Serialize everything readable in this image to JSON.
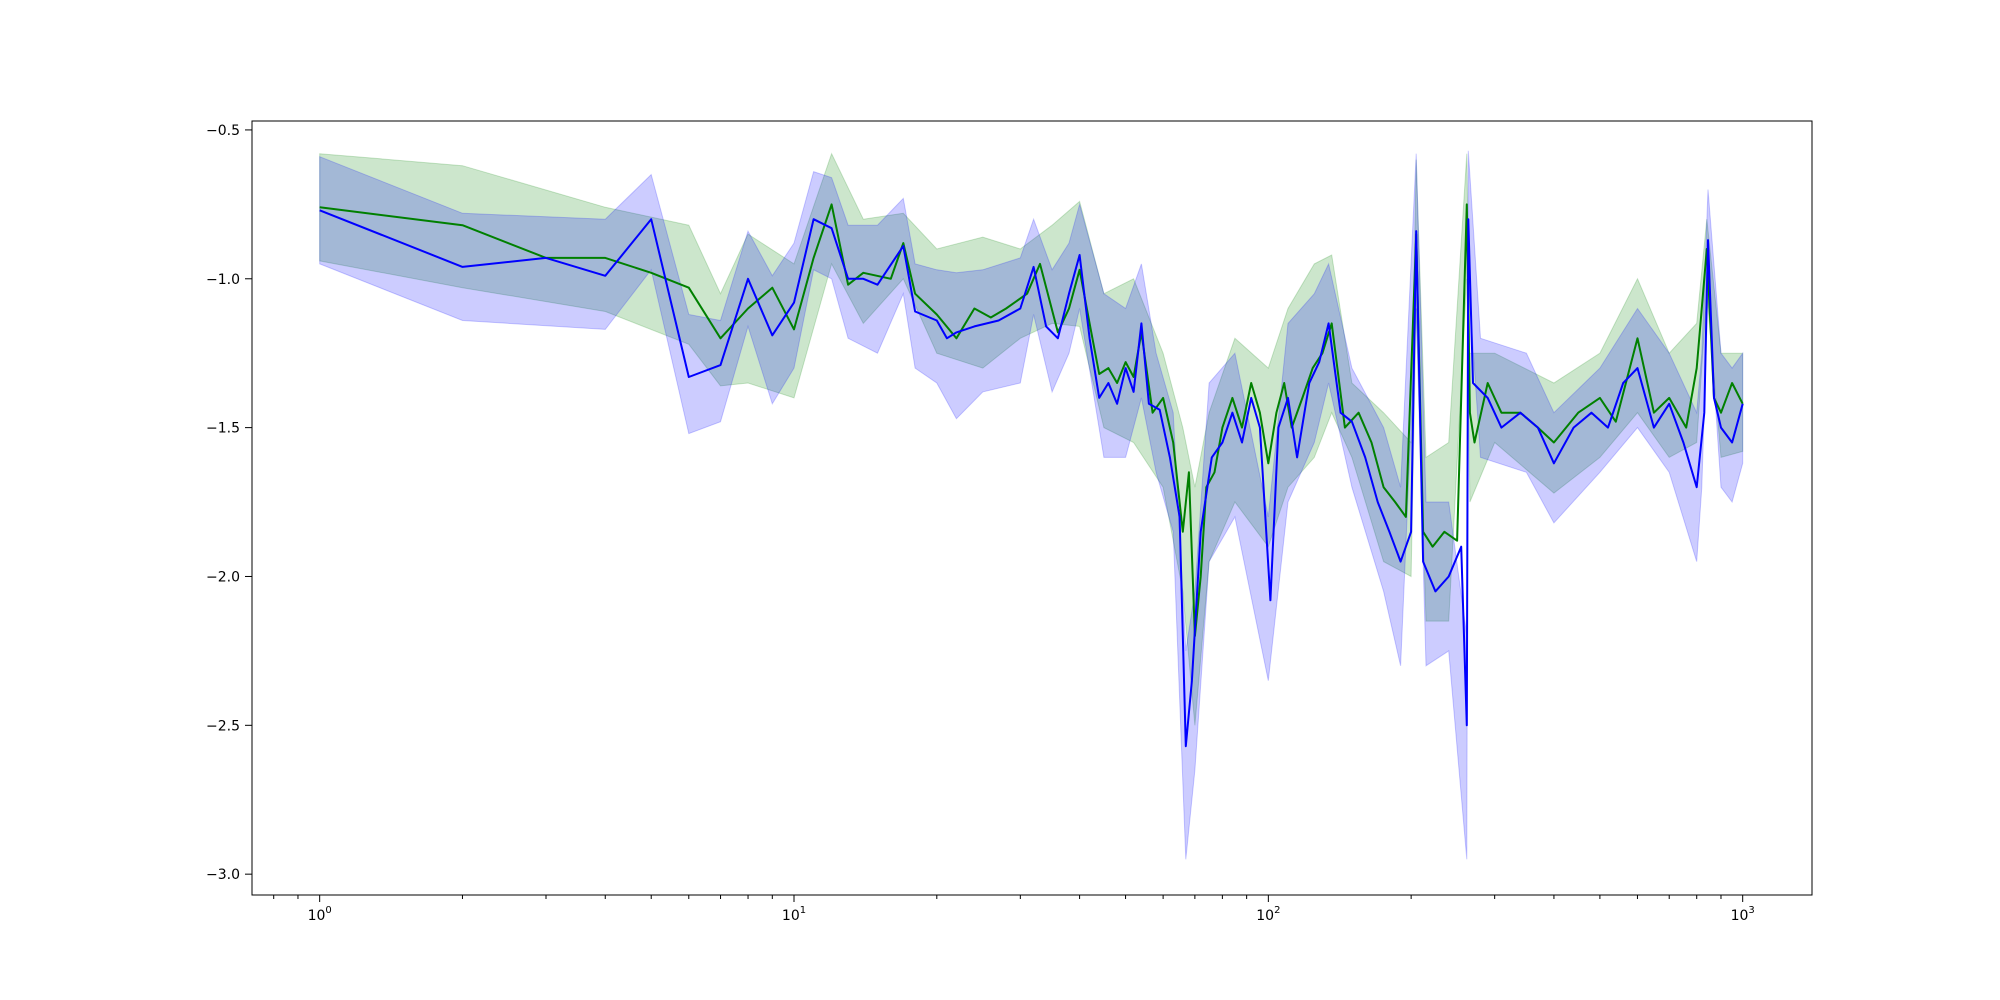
{
  "colors": {
    "green": "#008000",
    "blue": "#0000ff",
    "green_fill": "#008000",
    "blue_fill": "#0000ff"
  },
  "chart_data": {
    "type": "line",
    "title": "",
    "xlabel": "",
    "ylabel": "",
    "x_scale": "log",
    "xlim": [
      0.72,
      1400
    ],
    "ylim": [
      -3.07,
      -0.47
    ],
    "grid": false,
    "legend": "none",
    "x_ticks": [
      {
        "value": 1,
        "base": "10",
        "exp": "0"
      },
      {
        "value": 10,
        "base": "10",
        "exp": "1"
      },
      {
        "value": 100,
        "base": "10",
        "exp": "2"
      },
      {
        "value": 1000,
        "base": "10",
        "exp": "3"
      }
    ],
    "y_ticks": [
      {
        "value": -0.5,
        "label": "−0.5"
      },
      {
        "value": -1.0,
        "label": "−1.0"
      },
      {
        "value": -1.5,
        "label": "−1.5"
      },
      {
        "value": -2.0,
        "label": "−2.0"
      },
      {
        "value": -2.5,
        "label": "−2.5"
      },
      {
        "value": -3.0,
        "label": "−3.0"
      }
    ],
    "series": [
      {
        "color": "green",
        "points": [
          [
            1,
            -0.76
          ],
          [
            2,
            -0.82
          ],
          [
            3,
            -0.93
          ],
          [
            4,
            -0.93
          ],
          [
            5,
            -0.98
          ],
          [
            6,
            -1.03
          ],
          [
            7,
            -1.2
          ],
          [
            8,
            -1.1
          ],
          [
            9,
            -1.03
          ],
          [
            10,
            -1.17
          ],
          [
            11,
            -0.93
          ],
          [
            12,
            -0.75
          ],
          [
            13,
            -1.02
          ],
          [
            14,
            -0.98
          ],
          [
            16,
            -1.0
          ],
          [
            17,
            -0.88
          ],
          [
            18,
            -1.05
          ],
          [
            20,
            -1.12
          ],
          [
            22,
            -1.2
          ],
          [
            24,
            -1.1
          ],
          [
            26,
            -1.13
          ],
          [
            28,
            -1.1
          ],
          [
            31,
            -1.05
          ],
          [
            33,
            -0.95
          ],
          [
            36,
            -1.18
          ],
          [
            38,
            -1.1
          ],
          [
            40,
            -0.97
          ],
          [
            42,
            -1.15
          ],
          [
            44,
            -1.32
          ],
          [
            46,
            -1.3
          ],
          [
            48,
            -1.35
          ],
          [
            50,
            -1.28
          ],
          [
            52,
            -1.33
          ],
          [
            54,
            -1.18
          ],
          [
            57,
            -1.45
          ],
          [
            60,
            -1.4
          ],
          [
            63,
            -1.55
          ],
          [
            66,
            -1.85
          ],
          [
            68,
            -1.65
          ],
          [
            70,
            -2.2
          ],
          [
            72,
            -2.0
          ],
          [
            74,
            -1.7
          ],
          [
            77,
            -1.65
          ],
          [
            80,
            -1.5
          ],
          [
            84,
            -1.4
          ],
          [
            88,
            -1.5
          ],
          [
            92,
            -1.35
          ],
          [
            96,
            -1.45
          ],
          [
            100,
            -1.62
          ],
          [
            104,
            -1.45
          ],
          [
            108,
            -1.35
          ],
          [
            112,
            -1.5
          ],
          [
            118,
            -1.4
          ],
          [
            124,
            -1.3
          ],
          [
            130,
            -1.25
          ],
          [
            136,
            -1.15
          ],
          [
            145,
            -1.5
          ],
          [
            155,
            -1.45
          ],
          [
            165,
            -1.55
          ],
          [
            175,
            -1.7
          ],
          [
            185,
            -1.75
          ],
          [
            195,
            -1.8
          ],
          [
            205,
            -0.85
          ],
          [
            212,
            -1.85
          ],
          [
            222,
            -1.9
          ],
          [
            235,
            -1.85
          ],
          [
            250,
            -1.88
          ],
          [
            262,
            -0.75
          ],
          [
            266,
            -1.45
          ],
          [
            272,
            -1.55
          ],
          [
            290,
            -1.35
          ],
          [
            310,
            -1.45
          ],
          [
            340,
            -1.45
          ],
          [
            370,
            -1.5
          ],
          [
            400,
            -1.55
          ],
          [
            450,
            -1.45
          ],
          [
            500,
            -1.4
          ],
          [
            540,
            -1.48
          ],
          [
            600,
            -1.2
          ],
          [
            650,
            -1.45
          ],
          [
            700,
            -1.4
          ],
          [
            760,
            -1.5
          ],
          [
            800,
            -1.3
          ],
          [
            840,
            -0.9
          ],
          [
            870,
            -1.4
          ],
          [
            900,
            -1.45
          ],
          [
            950,
            -1.35
          ],
          [
            1000,
            -1.42
          ]
        ]
      },
      {
        "color": "blue",
        "points": [
          [
            1,
            -0.77
          ],
          [
            2,
            -0.96
          ],
          [
            3,
            -0.93
          ],
          [
            4,
            -0.99
          ],
          [
            5,
            -0.8
          ],
          [
            6,
            -1.33
          ],
          [
            7,
            -1.29
          ],
          [
            8,
            -1.0
          ],
          [
            9,
            -1.19
          ],
          [
            10,
            -1.08
          ],
          [
            11,
            -0.8
          ],
          [
            12,
            -0.83
          ],
          [
            13,
            -1.0
          ],
          [
            14,
            -1.0
          ],
          [
            15,
            -1.02
          ],
          [
            17,
            -0.89
          ],
          [
            18,
            -1.11
          ],
          [
            20,
            -1.14
          ],
          [
            21,
            -1.2
          ],
          [
            22,
            -1.18
          ],
          [
            24,
            -1.16
          ],
          [
            27,
            -1.14
          ],
          [
            30,
            -1.1
          ],
          [
            32,
            -0.96
          ],
          [
            34,
            -1.16
          ],
          [
            36,
            -1.2
          ],
          [
            38,
            -1.05
          ],
          [
            40,
            -0.92
          ],
          [
            42,
            -1.2
          ],
          [
            44,
            -1.4
          ],
          [
            46,
            -1.35
          ],
          [
            48,
            -1.42
          ],
          [
            50,
            -1.3
          ],
          [
            52,
            -1.38
          ],
          [
            54,
            -1.15
          ],
          [
            56,
            -1.42
          ],
          [
            59,
            -1.44
          ],
          [
            62,
            -1.6
          ],
          [
            65,
            -1.8
          ],
          [
            67,
            -2.57
          ],
          [
            69,
            -2.35
          ],
          [
            72,
            -1.85
          ],
          [
            76,
            -1.6
          ],
          [
            80,
            -1.55
          ],
          [
            84,
            -1.45
          ],
          [
            88,
            -1.55
          ],
          [
            92,
            -1.4
          ],
          [
            96,
            -1.5
          ],
          [
            101,
            -2.08
          ],
          [
            105,
            -1.5
          ],
          [
            110,
            -1.4
          ],
          [
            115,
            -1.6
          ],
          [
            122,
            -1.35
          ],
          [
            128,
            -1.28
          ],
          [
            134,
            -1.15
          ],
          [
            142,
            -1.45
          ],
          [
            150,
            -1.48
          ],
          [
            160,
            -1.6
          ],
          [
            170,
            -1.75
          ],
          [
            180,
            -1.85
          ],
          [
            190,
            -1.95
          ],
          [
            200,
            -1.85
          ],
          [
            205,
            -0.84
          ],
          [
            212,
            -1.95
          ],
          [
            225,
            -2.05
          ],
          [
            240,
            -2.0
          ],
          [
            255,
            -1.9
          ],
          [
            262,
            -2.5
          ],
          [
            264,
            -0.8
          ],
          [
            270,
            -1.35
          ],
          [
            290,
            -1.4
          ],
          [
            310,
            -1.5
          ],
          [
            340,
            -1.45
          ],
          [
            370,
            -1.5
          ],
          [
            400,
            -1.62
          ],
          [
            440,
            -1.5
          ],
          [
            480,
            -1.45
          ],
          [
            520,
            -1.5
          ],
          [
            560,
            -1.35
          ],
          [
            600,
            -1.3
          ],
          [
            650,
            -1.5
          ],
          [
            700,
            -1.42
          ],
          [
            750,
            -1.55
          ],
          [
            800,
            -1.7
          ],
          [
            830,
            -1.45
          ],
          [
            845,
            -0.87
          ],
          [
            870,
            -1.4
          ],
          [
            900,
            -1.5
          ],
          [
            950,
            -1.55
          ],
          [
            1000,
            -1.42
          ]
        ]
      }
    ],
    "bands": [
      {
        "color": "green",
        "points": [
          [
            1,
            -0.58,
            -0.94
          ],
          [
            2,
            -0.62,
            -1.03
          ],
          [
            4,
            -0.76,
            -1.11
          ],
          [
            6,
            -0.82,
            -1.22
          ],
          [
            7,
            -1.05,
            -1.36
          ],
          [
            8,
            -0.85,
            -1.35
          ],
          [
            10,
            -0.95,
            -1.4
          ],
          [
            12,
            -0.58,
            -0.95
          ],
          [
            14,
            -0.8,
            -1.15
          ],
          [
            17,
            -0.78,
            -1.0
          ],
          [
            20,
            -0.9,
            -1.25
          ],
          [
            25,
            -0.86,
            -1.3
          ],
          [
            30,
            -0.9,
            -1.2
          ],
          [
            35,
            -0.82,
            -1.15
          ],
          [
            40,
            -0.74,
            -1.16
          ],
          [
            45,
            -1.05,
            -1.5
          ],
          [
            52,
            -1.0,
            -1.55
          ],
          [
            60,
            -1.25,
            -1.7
          ],
          [
            66,
            -1.5,
            -2.05
          ],
          [
            70,
            -1.7,
            -2.5
          ],
          [
            75,
            -1.45,
            -1.95
          ],
          [
            85,
            -1.2,
            -1.75
          ],
          [
            100,
            -1.3,
            -1.9
          ],
          [
            110,
            -1.1,
            -1.7
          ],
          [
            125,
            -0.95,
            -1.6
          ],
          [
            136,
            -0.92,
            -1.45
          ],
          [
            150,
            -1.35,
            -1.6
          ],
          [
            175,
            -1.45,
            -1.95
          ],
          [
            200,
            -1.55,
            -2.0
          ],
          [
            205,
            -0.6,
            -1.1
          ],
          [
            215,
            -1.6,
            -2.15
          ],
          [
            240,
            -1.55,
            -2.15
          ],
          [
            262,
            -0.58,
            -1.0
          ],
          [
            266,
            -1.25,
            -1.75
          ],
          [
            300,
            -1.25,
            -1.55
          ],
          [
            400,
            -1.35,
            -1.72
          ],
          [
            500,
            -1.25,
            -1.6
          ],
          [
            600,
            -1.0,
            -1.45
          ],
          [
            700,
            -1.25,
            -1.6
          ],
          [
            800,
            -1.15,
            -1.55
          ],
          [
            840,
            -0.8,
            -1.05
          ],
          [
            900,
            -1.25,
            -1.6
          ],
          [
            1000,
            -1.25,
            -1.58
          ]
        ]
      },
      {
        "color": "blue",
        "points": [
          [
            1,
            -0.59,
            -0.95
          ],
          [
            2,
            -0.78,
            -1.14
          ],
          [
            4,
            -0.8,
            -1.17
          ],
          [
            5,
            -0.65,
            -0.97
          ],
          [
            6,
            -1.12,
            -1.52
          ],
          [
            7,
            -1.14,
            -1.48
          ],
          [
            8,
            -0.84,
            -1.16
          ],
          [
            9,
            -0.99,
            -1.42
          ],
          [
            10,
            -0.88,
            -1.3
          ],
          [
            11,
            -0.64,
            -0.97
          ],
          [
            12,
            -0.66,
            -1.0
          ],
          [
            13,
            -0.82,
            -1.2
          ],
          [
            15,
            -0.82,
            -1.25
          ],
          [
            17,
            -0.73,
            -1.05
          ],
          [
            18,
            -0.95,
            -1.3
          ],
          [
            20,
            -0.97,
            -1.35
          ],
          [
            22,
            -0.98,
            -1.47
          ],
          [
            25,
            -0.97,
            -1.38
          ],
          [
            30,
            -0.93,
            -1.35
          ],
          [
            32,
            -0.8,
            -1.12
          ],
          [
            35,
            -0.97,
            -1.38
          ],
          [
            38,
            -0.88,
            -1.25
          ],
          [
            40,
            -0.75,
            -1.1
          ],
          [
            45,
            -1.05,
            -1.6
          ],
          [
            50,
            -1.1,
            -1.6
          ],
          [
            54,
            -0.95,
            -1.4
          ],
          [
            58,
            -1.25,
            -1.65
          ],
          [
            63,
            -1.45,
            -1.85
          ],
          [
            67,
            -2.25,
            -2.95
          ],
          [
            70,
            -2.05,
            -2.65
          ],
          [
            75,
            -1.35,
            -1.95
          ],
          [
            85,
            -1.25,
            -1.8
          ],
          [
            100,
            -1.8,
            -2.35
          ],
          [
            110,
            -1.15,
            -1.75
          ],
          [
            125,
            -1.05,
            -1.55
          ],
          [
            134,
            -0.95,
            -1.35
          ],
          [
            150,
            -1.3,
            -1.7
          ],
          [
            175,
            -1.5,
            -2.05
          ],
          [
            190,
            -1.7,
            -2.3
          ],
          [
            205,
            -0.58,
            -1.1
          ],
          [
            215,
            -1.75,
            -2.3
          ],
          [
            240,
            -1.75,
            -2.25
          ],
          [
            262,
            -2.2,
            -2.95
          ],
          [
            264,
            -0.57,
            -1.0
          ],
          [
            280,
            -1.2,
            -1.6
          ],
          [
            350,
            -1.25,
            -1.65
          ],
          [
            400,
            -1.45,
            -1.82
          ],
          [
            500,
            -1.3,
            -1.65
          ],
          [
            600,
            -1.1,
            -1.5
          ],
          [
            700,
            -1.25,
            -1.65
          ],
          [
            800,
            -1.45,
            -1.95
          ],
          [
            820,
            -1.25,
            -1.7
          ],
          [
            845,
            -0.7,
            -1.05
          ],
          [
            900,
            -1.25,
            -1.7
          ],
          [
            950,
            -1.3,
            -1.75
          ],
          [
            1000,
            -1.25,
            -1.62
          ]
        ]
      }
    ]
  }
}
